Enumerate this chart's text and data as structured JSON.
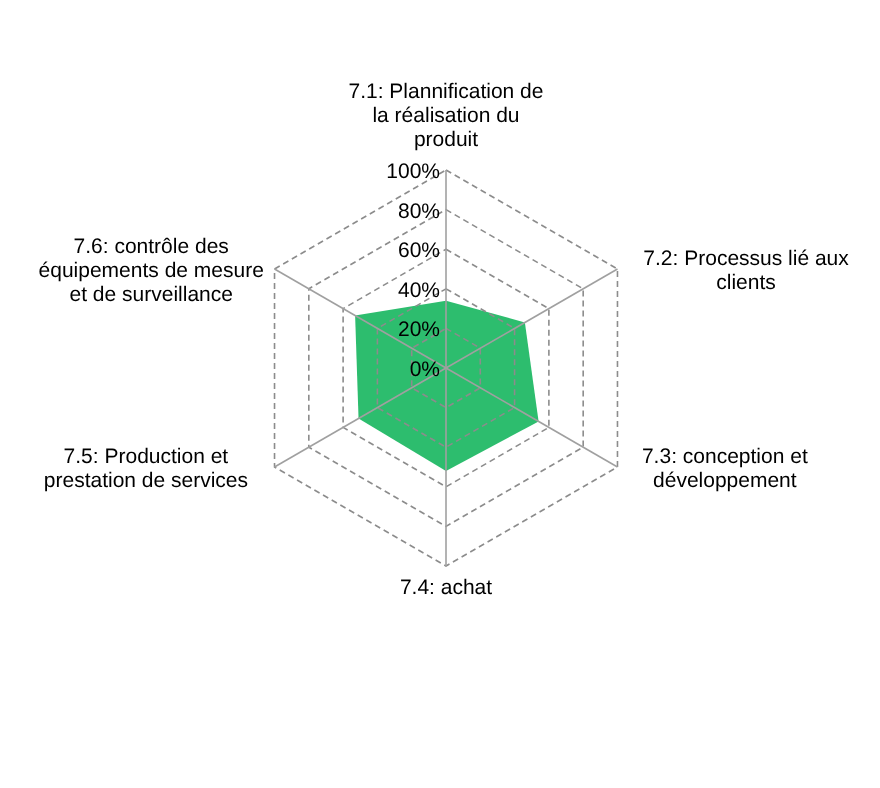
{
  "chart_data": {
    "type": "radar",
    "categories": [
      "7.1: Plannification de la réalisation du produit",
      "7.2: Processus lié aux clients",
      "7.3: conception et développement",
      "7.4: achat",
      "7.5: Production et prestation de services",
      "7.6: contrôle des équipements de mesure et de surveillance"
    ],
    "series": [
      {
        "color": "#2dbd6e",
        "values": [
          34,
          46,
          54,
          52,
          51,
          53
        ]
      }
    ],
    "ylim": [
      0,
      100
    ],
    "yticks": [
      {
        "value": 0,
        "label": "0%"
      },
      {
        "value": 20,
        "label": "20%"
      },
      {
        "value": 40,
        "label": "40%"
      },
      {
        "value": 60,
        "label": "60%"
      },
      {
        "value": 80,
        "label": "80%"
      },
      {
        "value": 100,
        "label": "100%"
      }
    ],
    "grid": true
  }
}
